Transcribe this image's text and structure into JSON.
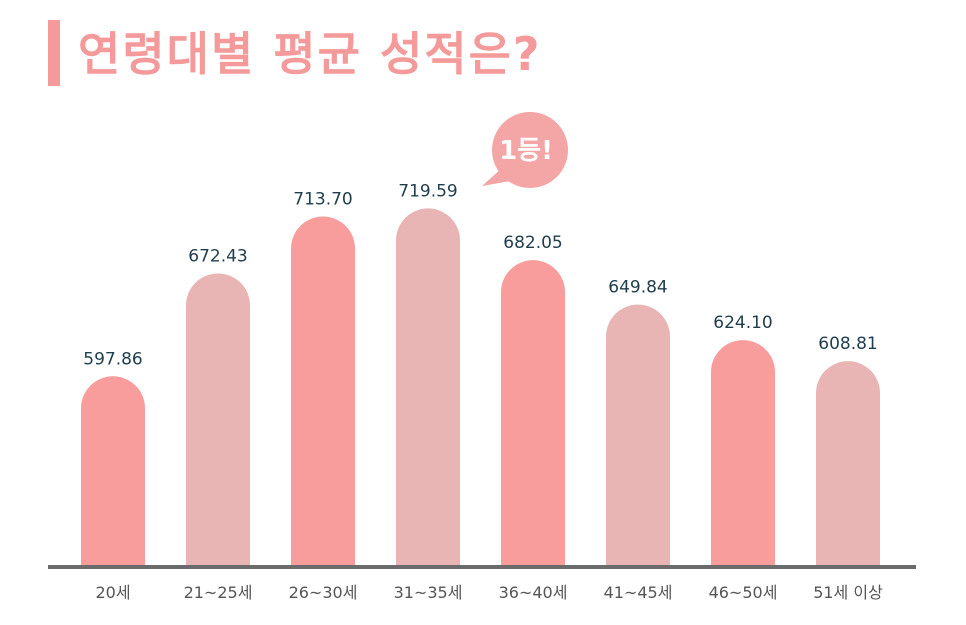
{
  "title": "연령대별 평균 성적은?",
  "callout": "1등!",
  "colors": {
    "accent": "#f59a9a",
    "bar_dark": "#f89c9c",
    "bar_light": "#e8b4b4",
    "axis": "#6b6b6b",
    "value_text": "#1f3d4d",
    "bubble": "#f4a5a5"
  },
  "chart_data": {
    "type": "bar",
    "title": "연령대별 평균 성적은?",
    "categories": [
      "20세",
      "21~25세",
      "26~30세",
      "31~35세",
      "36~40세",
      "41~45세",
      "46~50세",
      "51세 이상"
    ],
    "values": [
      597.86,
      672.43,
      713.7,
      719.59,
      682.05,
      649.84,
      624.1,
      608.81
    ],
    "value_labels": [
      "597.86",
      "672.43",
      "713.70",
      "719.59",
      "682.05",
      "649.84",
      "624.10",
      "608.81"
    ],
    "annotation": {
      "category": "31~35세",
      "text": "1등!"
    },
    "grid": false,
    "legend": "none"
  }
}
